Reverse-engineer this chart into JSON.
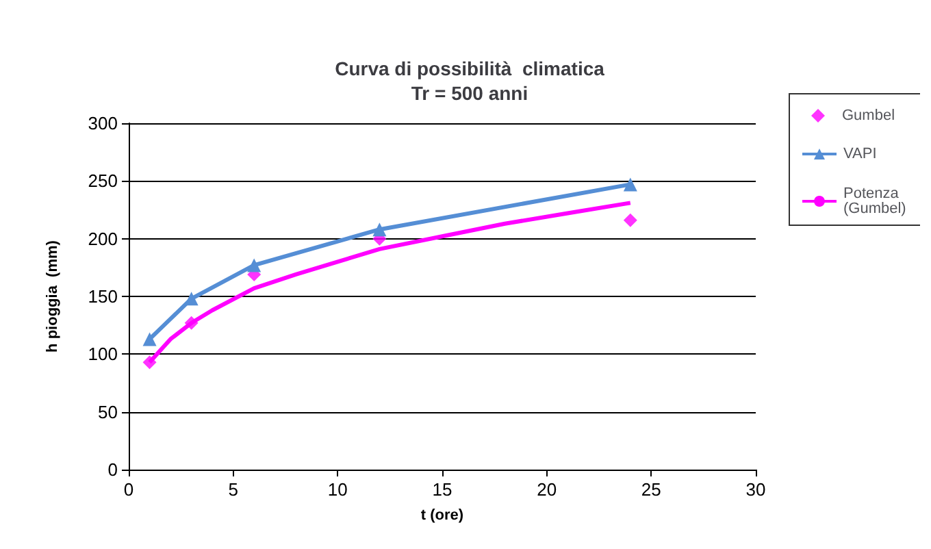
{
  "chart_data": {
    "type": "line",
    "title": "Curva di possibilità  climatica\nTr = 500 anni",
    "xlabel": "t (ore)",
    "ylabel": "h pioggia  (mm)",
    "xlim": [
      0,
      30
    ],
    "xticks": [
      0,
      5,
      10,
      15,
      20,
      25,
      30
    ],
    "ylim": [
      0,
      300
    ],
    "yticks": [
      0,
      50,
      100,
      150,
      200,
      250,
      300
    ],
    "grid": "y",
    "legend": "right",
    "series": [
      {
        "name": "Gumbel",
        "type": "scatter",
        "marker": "diamond",
        "color": "#ff00ff",
        "x": [
          1,
          3,
          6,
          12,
          24
        ],
        "values": [
          93,
          127,
          169,
          200,
          216
        ]
      },
      {
        "name": "VAPI",
        "type": "line",
        "marker": "triangle",
        "color": "#558ed5",
        "x": [
          1,
          3,
          6,
          12,
          24
        ],
        "values": [
          113,
          148,
          177,
          208,
          247
        ]
      },
      {
        "name": "Potenza\n(Gumbel)",
        "type": "line",
        "marker": "none",
        "color": "#ff00ff",
        "x": [
          1,
          2,
          3,
          4,
          6,
          8,
          10,
          12,
          15,
          18,
          21,
          24
        ],
        "values": [
          93,
          113,
          127,
          138,
          157,
          169,
          180,
          191,
          202,
          213,
          222,
          231
        ]
      }
    ]
  }
}
